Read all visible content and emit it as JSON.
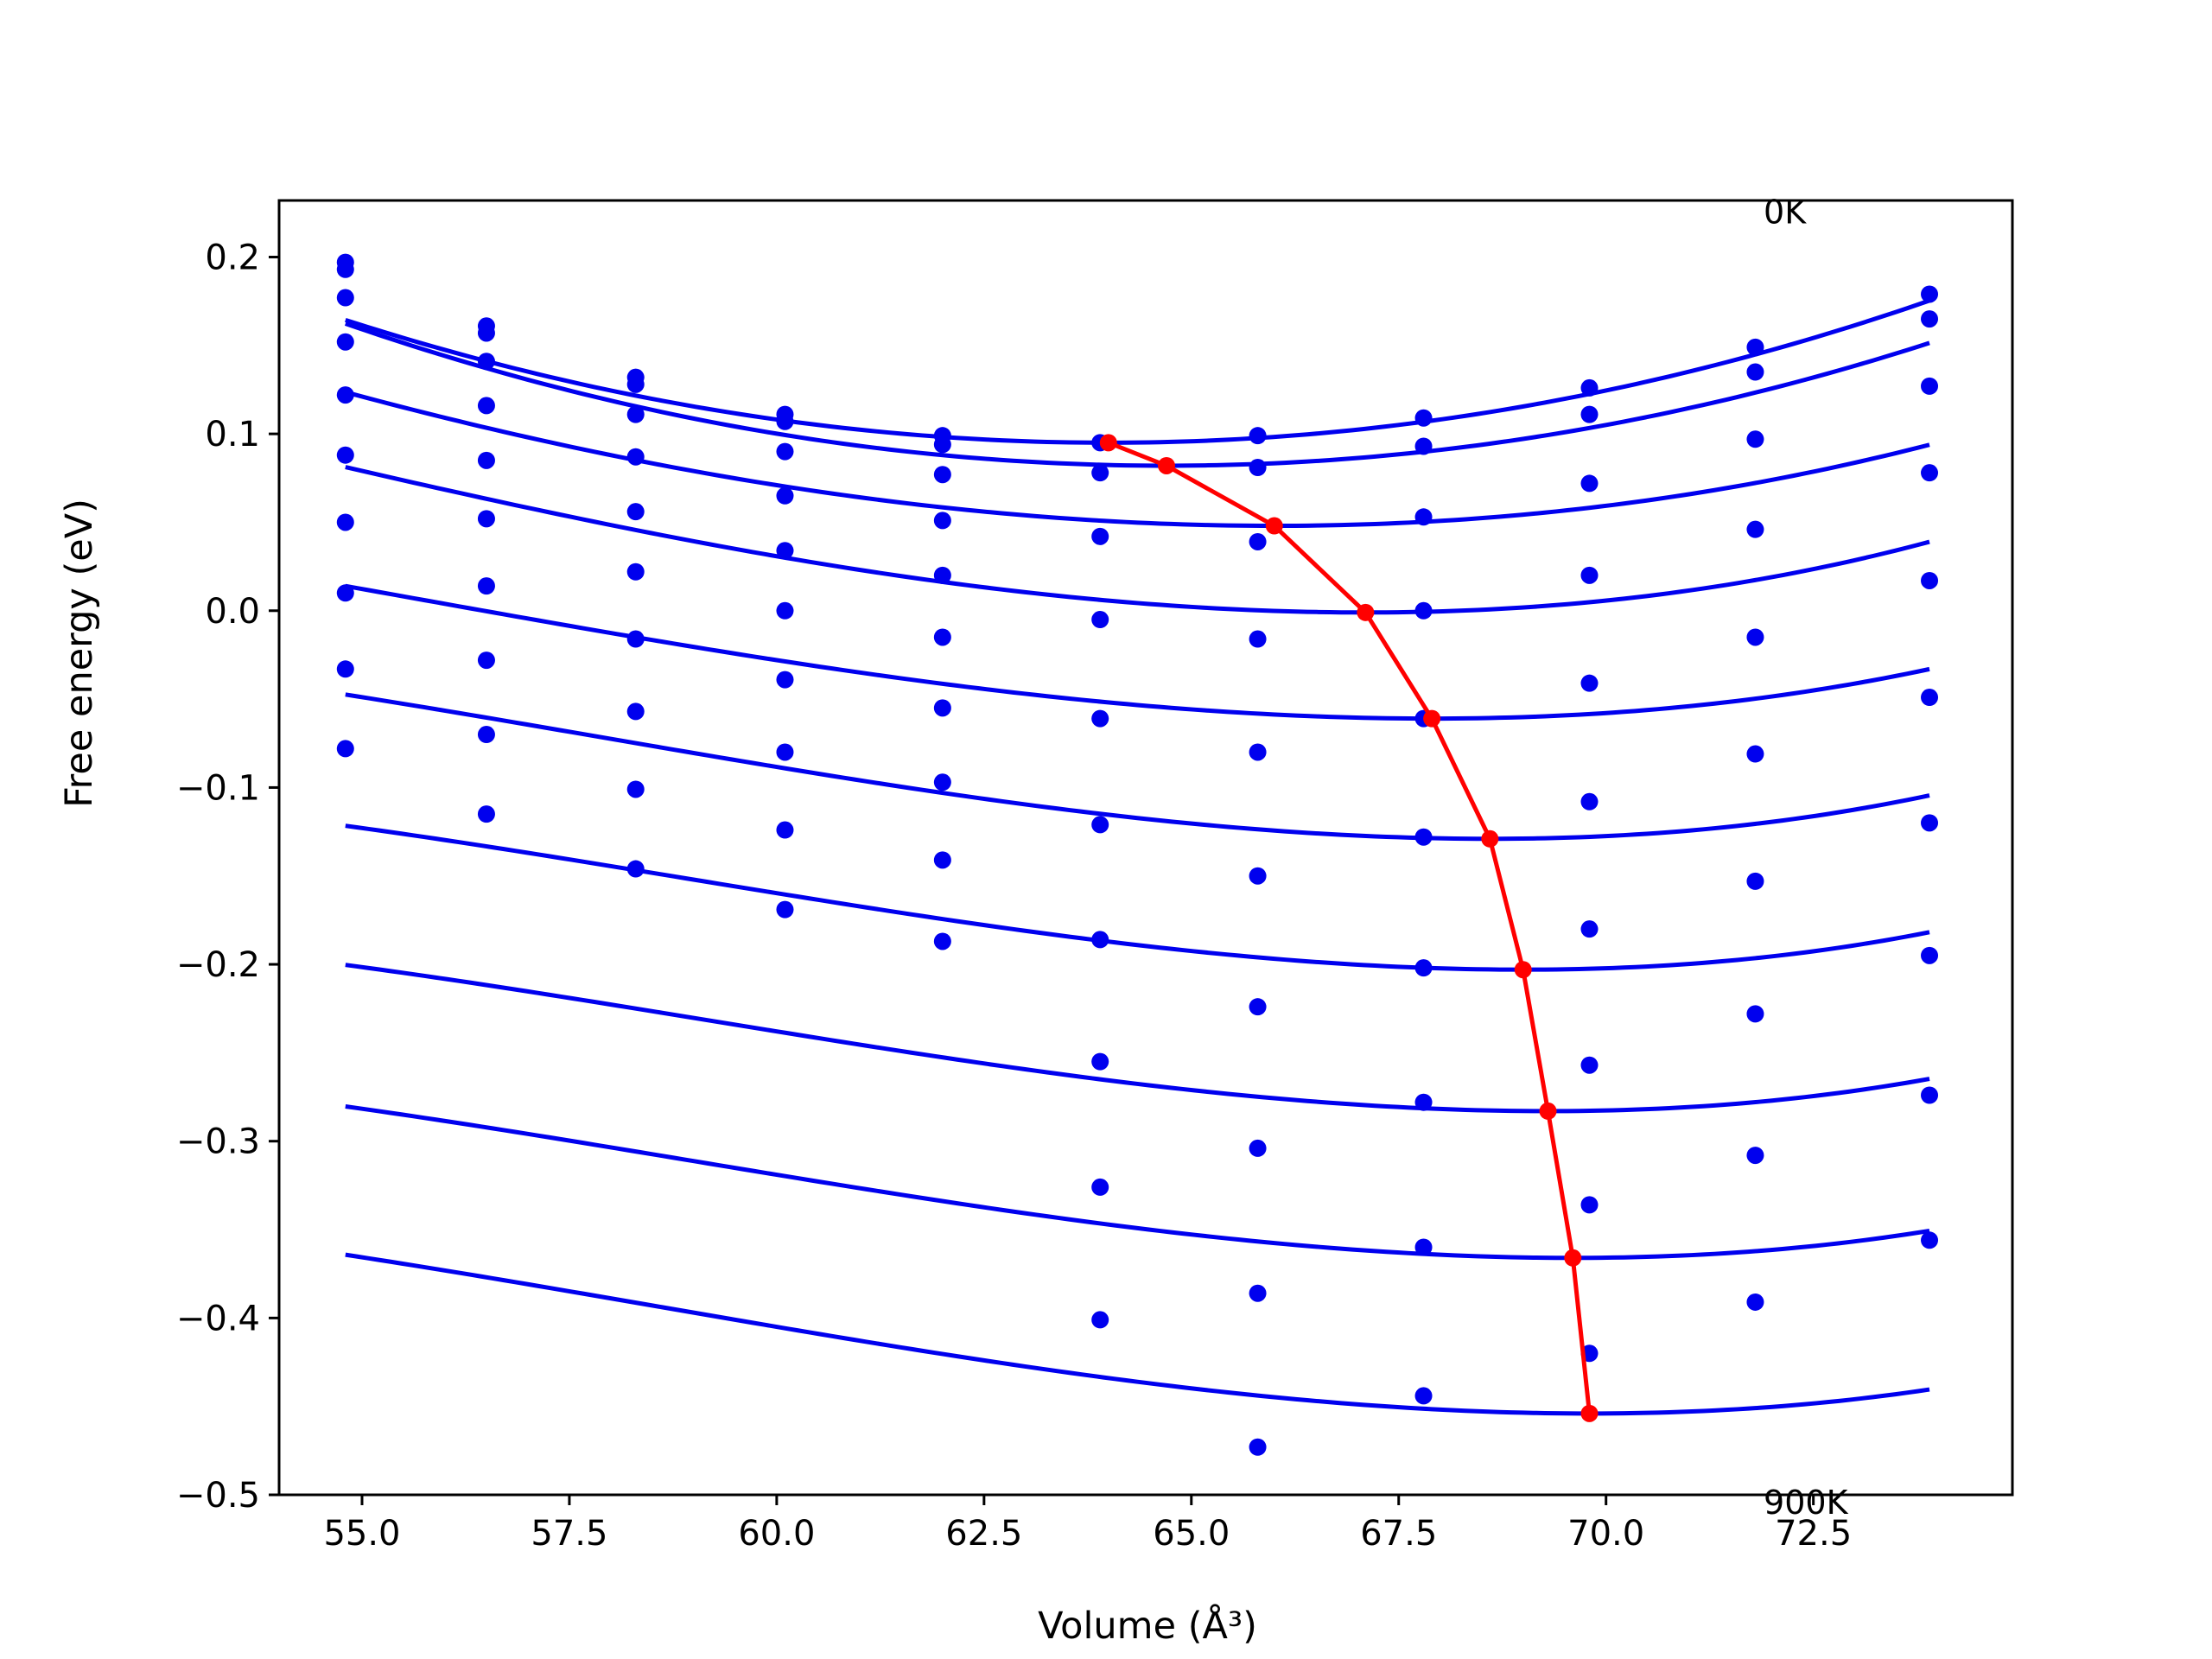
{
  "chart_data": {
    "type": "line",
    "xlabel": "Volume (Å³)",
    "ylabel": "Free energy (eV)",
    "xlim": [
      54.0,
      74.9
    ],
    "ylim": [
      -0.5,
      0.232
    ],
    "xticks": [
      55.0,
      57.5,
      60.0,
      62.5,
      65.0,
      67.5,
      70.0,
      72.5
    ],
    "xtick_labels": [
      "55.0",
      "57.5",
      "60.0",
      "62.5",
      "65.0",
      "67.5",
      "70.0",
      "72.5"
    ],
    "yticks": [
      0.2,
      0.1,
      0.0,
      -0.1,
      -0.2,
      -0.3,
      -0.4,
      -0.5
    ],
    "ytick_labels": [
      "0.2",
      "0.1",
      "0.0",
      "−0.1",
      "−0.2",
      "−0.3",
      "−0.4",
      "−0.5"
    ],
    "grid": false,
    "legend": "none",
    "annotations": [
      {
        "text": "0K",
        "x": 71.9,
        "y": 0.225
      },
      {
        "text": "900K",
        "x": 71.9,
        "y": -0.505
      }
    ],
    "volumes": [
      54.8,
      56.5,
      58.3,
      60.1,
      62.0,
      63.9,
      65.8,
      67.8,
      69.8,
      71.8,
      73.9
    ],
    "isotherms": [
      {
        "points": [
          0.197,
          0.161,
          0.132,
          0.111,
          0.099,
          0.095,
          0.099,
          0.109,
          0.126,
          0.149,
          0.179
        ],
        "fit": {
          "v0": 64.0,
          "e0": 0.095,
          "a": 0.00082,
          "b": 0.0
        }
      },
      {
        "points": [
          0.193,
          0.157,
          0.128,
          0.107,
          0.094,
          0.078,
          0.081,
          0.093,
          0.111,
          0.135,
          0.165
        ],
        "fit": {
          "v0": 64.7,
          "e0": 0.082,
          "a": 0.00082,
          "b": 0.0
        }
      },
      {
        "points": [
          0.177,
          0.141,
          0.111,
          0.09,
          0.077,
          0.042,
          0.039,
          0.053,
          0.072,
          0.097,
          0.127
        ],
        "fit": {
          "v0": 66.0,
          "e0": 0.048,
          "a": 0.00068,
          "b": 6.9e-06
        }
      },
      {
        "points": [
          0.152,
          0.116,
          0.087,
          0.065,
          0.051,
          -0.005,
          -0.016,
          0.0,
          0.02,
          0.046,
          0.078
        ],
        "fit": {
          "v0": 67.1,
          "e0": -0.001,
          "a": 0.00075,
          "b": 1.68e-05
        }
      },
      {
        "points": [
          0.122,
          0.085,
          0.056,
          0.034,
          0.02,
          -0.061,
          -0.08,
          -0.061,
          -0.041,
          -0.015,
          0.017
        ],
        "fit": {
          "v0": 67.9,
          "e0": -0.061,
          "a": 0.00067,
          "b": 1.78e-05
        }
      },
      {
        "points": [
          0.088,
          0.052,
          0.022,
          0.0,
          -0.015,
          -0.121,
          -0.15,
          -0.128,
          -0.108,
          -0.081,
          -0.049
        ],
        "fit": {
          "v0": 68.6,
          "e0": -0.129,
          "a": 0.00075,
          "b": 2.33e-05
        }
      },
      {
        "points": [
          0.05,
          0.014,
          -0.016,
          -0.039,
          -0.055,
          -0.186,
          -0.224,
          -0.202,
          -0.18,
          -0.153,
          -0.12
        ],
        "fit": {
          "v0": 69.0,
          "e0": -0.203,
          "a": 0.00076,
          "b": 2.51e-05
        }
      },
      {
        "points": [
          0.01,
          -0.028,
          -0.057,
          -0.08,
          -0.097,
          -0.255,
          -0.304,
          -0.278,
          -0.257,
          -0.228,
          -0.195
        ],
        "fit": {
          "v0": 69.3,
          "e0": -0.283,
          "a": 0.00075,
          "b": 2.46e-05
        }
      },
      {
        "points": [
          -0.033,
          -0.07,
          -0.101,
          -0.124,
          -0.141,
          -0.326,
          -0.386,
          -0.36,
          -0.336,
          -0.308,
          -0.274
        ],
        "fit": {
          "v0": 69.6,
          "e0": -0.366,
          "a": 0.00073,
          "b": 2.29e-05
        }
      },
      {
        "points": [
          -0.078,
          -0.115,
          -0.146,
          -0.169,
          -0.187,
          -0.401,
          -0.473,
          -0.444,
          -0.42,
          -0.391,
          -0.356
        ],
        "fit": {
          "v0": 69.8,
          "e0": -0.454,
          "a": 0.00072,
          "b": 2.14e-05
        }
      }
    ],
    "minima_path": {
      "x": [
        64.0,
        64.7,
        66.0,
        67.1,
        67.9,
        68.6,
        69.0,
        69.3,
        69.6,
        69.8
      ],
      "y": [
        0.095,
        0.082,
        0.048,
        -0.001,
        -0.061,
        -0.129,
        -0.203,
        -0.283,
        -0.366,
        -0.454
      ]
    },
    "colors": {
      "isotherm": "#0000ee",
      "minima": "#ff0000",
      "frame": "#000000"
    }
  }
}
